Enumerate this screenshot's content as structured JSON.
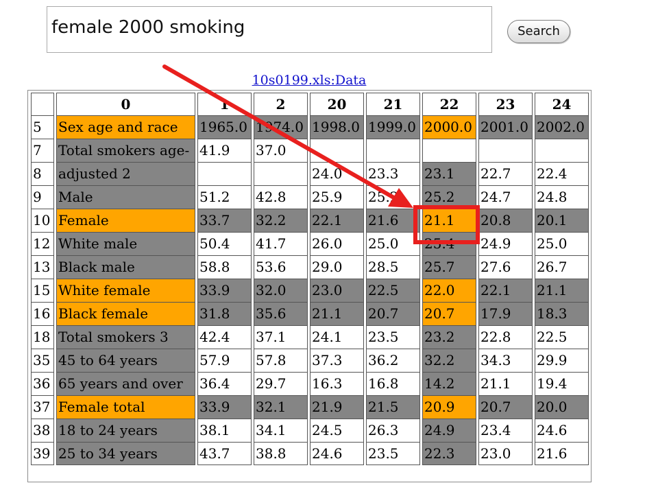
{
  "search": {
    "query": "female 2000 smoking",
    "button_label": "Search"
  },
  "source_link": "10s0199.xls:Data",
  "colors": {
    "highlight_orange": "#ffa500",
    "cell_gray": "#858585",
    "annotation_red": "#e8201e"
  },
  "table": {
    "header": [
      "",
      "0",
      "1",
      "2",
      "20",
      "21",
      "22",
      "23",
      "24"
    ],
    "rows": [
      {
        "cells": [
          "5",
          "Sex age and race",
          "1965.0",
          "1974.0",
          "1998.0",
          "1999.0",
          "2000.0",
          "2001.0",
          "2002.0"
        ],
        "shade": [
          "",
          "o",
          "g",
          "g",
          "g",
          "g",
          "o",
          "g",
          "g"
        ]
      },
      {
        "cells": [
          "7",
          "Total smokers age-",
          "41.9",
          "37.0",
          "",
          "",
          "",
          "",
          ""
        ],
        "shade": [
          "",
          "g",
          "",
          "",
          "",
          "",
          "",
          "",
          ""
        ]
      },
      {
        "cells": [
          "8",
          "adjusted 2",
          "",
          "",
          "24.0",
          "23.3",
          "23.1",
          "22.7",
          "22.4"
        ],
        "shade": [
          "",
          "g",
          "",
          "",
          "",
          "",
          "g",
          "",
          ""
        ]
      },
      {
        "cells": [
          "9",
          "Male",
          "51.2",
          "42.8",
          "25.9",
          "25.2",
          "25.2",
          "24.7",
          "24.8"
        ],
        "shade": [
          "",
          "g",
          "",
          "",
          "",
          "",
          "g",
          "",
          ""
        ]
      },
      {
        "cells": [
          "10",
          "Female",
          "33.7",
          "32.2",
          "22.1",
          "21.6",
          "21.1",
          "20.8",
          "20.1"
        ],
        "shade": [
          "",
          "o",
          "g",
          "g",
          "g",
          "g",
          "o",
          "g",
          "g"
        ]
      },
      {
        "cells": [
          "12",
          "White male",
          "50.4",
          "41.7",
          "26.0",
          "25.0",
          "25.4",
          "24.9",
          "25.0"
        ],
        "shade": [
          "",
          "g",
          "",
          "",
          "",
          "",
          "g",
          "",
          ""
        ]
      },
      {
        "cells": [
          "13",
          "Black male",
          "58.8",
          "53.6",
          "29.0",
          "28.5",
          "25.7",
          "27.6",
          "26.7"
        ],
        "shade": [
          "",
          "g",
          "",
          "",
          "",
          "",
          "g",
          "",
          ""
        ]
      },
      {
        "cells": [
          "15",
          "White female",
          "33.9",
          "32.0",
          "23.0",
          "22.5",
          "22.0",
          "22.1",
          "21.1"
        ],
        "shade": [
          "",
          "o",
          "g",
          "g",
          "g",
          "g",
          "o",
          "g",
          "g"
        ]
      },
      {
        "cells": [
          "16",
          "Black female",
          "31.8",
          "35.6",
          "21.1",
          "20.7",
          "20.7",
          "17.9",
          "18.3"
        ],
        "shade": [
          "",
          "o",
          "g",
          "g",
          "g",
          "g",
          "o",
          "g",
          "g"
        ]
      },
      {
        "cells": [
          "18",
          "Total smokers 3",
          "42.4",
          "37.1",
          "24.1",
          "23.5",
          "23.2",
          "22.8",
          "22.5"
        ],
        "shade": [
          "",
          "g",
          "",
          "",
          "",
          "",
          "g",
          "",
          ""
        ]
      },
      {
        "cells": [
          "35",
          "45 to 64 years",
          "57.9",
          "57.8",
          "37.3",
          "36.2",
          "32.2",
          "34.3",
          "29.9"
        ],
        "shade": [
          "",
          "g",
          "",
          "",
          "",
          "",
          "g",
          "",
          ""
        ]
      },
      {
        "cells": [
          "36",
          "65 years and over",
          "36.4",
          "29.7",
          "16.3",
          "16.8",
          "14.2",
          "21.1",
          "19.4"
        ],
        "shade": [
          "",
          "g",
          "",
          "",
          "",
          "",
          "g",
          "",
          ""
        ]
      },
      {
        "cells": [
          "37",
          "Female total",
          "33.9",
          "32.1",
          "21.9",
          "21.5",
          "20.9",
          "20.7",
          "20.0"
        ],
        "shade": [
          "",
          "o",
          "g",
          "g",
          "g",
          "g",
          "o",
          "g",
          "g"
        ]
      },
      {
        "cells": [
          "38",
          "18 to 24 years",
          "38.1",
          "34.1",
          "24.5",
          "26.3",
          "24.9",
          "23.4",
          "24.6"
        ],
        "shade": [
          "",
          "g",
          "",
          "",
          "",
          "",
          "g",
          "",
          ""
        ]
      },
      {
        "cells": [
          "39",
          "25 to 34 years",
          "43.7",
          "38.8",
          "24.6",
          "23.5",
          "22.3",
          "23.0",
          "21.6"
        ],
        "shade": [
          "",
          "g",
          "",
          "",
          "",
          "",
          "g",
          "",
          ""
        ]
      }
    ]
  },
  "annotation": {
    "arrow": "red-arrow",
    "box": "red-highlight-box",
    "target_row": "10",
    "target_column": "22"
  }
}
